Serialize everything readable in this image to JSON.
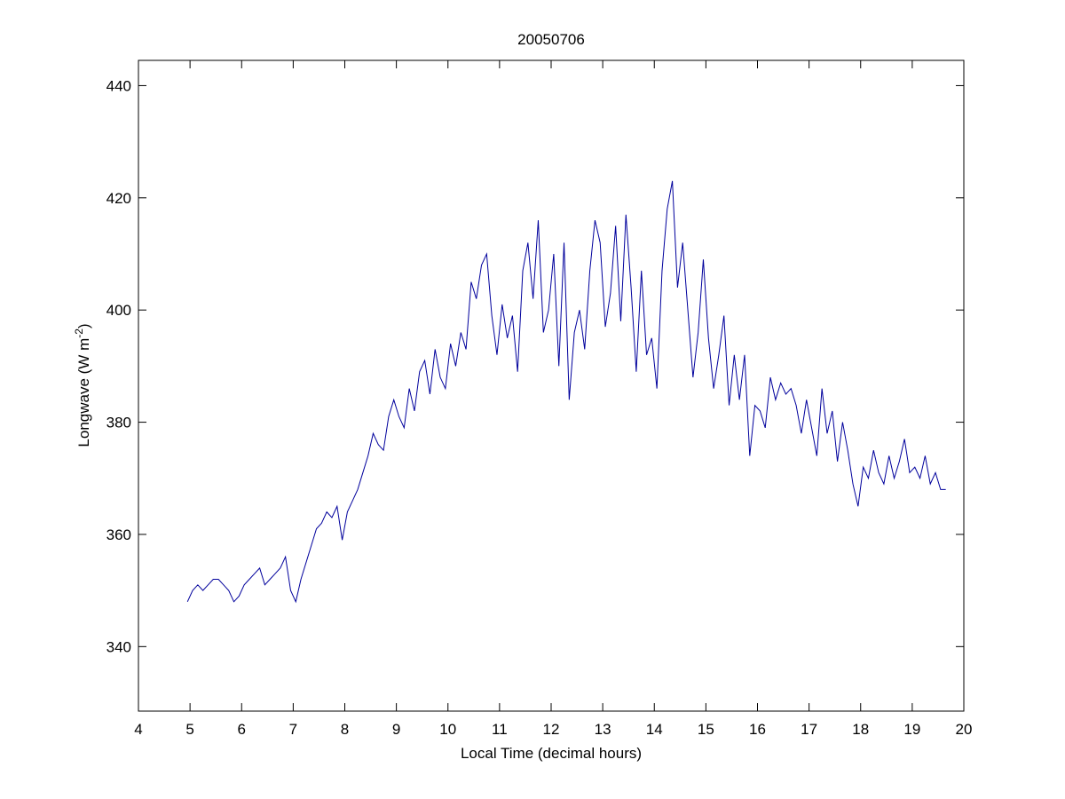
{
  "chart_data": {
    "type": "line",
    "title": "20050706",
    "x_label": "Local Time (decimal hours)",
    "y_label": [
      "Longwave (W m",
      "-2",
      ")"
    ],
    "xlim": [
      4,
      20
    ],
    "xticks": [
      4,
      5,
      6,
      7,
      8,
      9,
      10,
      11,
      12,
      13,
      14,
      15,
      16,
      17,
      18,
      19,
      20
    ],
    "ylim": [
      328.5,
      444.5
    ],
    "yticks": [
      340,
      360,
      380,
      400,
      420,
      440
    ],
    "grid": false,
    "series": [
      {
        "color": "#00009c",
        "x": [
          4.95,
          5.05,
          5.15,
          5.25,
          5.35,
          5.45,
          5.55,
          5.65,
          5.75,
          5.85,
          5.95,
          6.05,
          6.15,
          6.25,
          6.35,
          6.45,
          6.55,
          6.65,
          6.75,
          6.85,
          6.95,
          7.05,
          7.15,
          7.25,
          7.35,
          7.45,
          7.55,
          7.65,
          7.75,
          7.85,
          7.95,
          8.05,
          8.15,
          8.25,
          8.35,
          8.45,
          8.55,
          8.65,
          8.75,
          8.85,
          8.95,
          9.05,
          9.15,
          9.25,
          9.35,
          9.45,
          9.55,
          9.65,
          9.75,
          9.85,
          9.95,
          10.05,
          10.15,
          10.25,
          10.35,
          10.45,
          10.55,
          10.65,
          10.75,
          10.85,
          10.95,
          11.05,
          11.15,
          11.25,
          11.35,
          11.45,
          11.55,
          11.65,
          11.75,
          11.85,
          11.95,
          12.05,
          12.15,
          12.25,
          12.35,
          12.45,
          12.55,
          12.65,
          12.75,
          12.85,
          12.95,
          13.05,
          13.15,
          13.25,
          13.35,
          13.45,
          13.55,
          13.65,
          13.75,
          13.85,
          13.95,
          14.05,
          14.15,
          14.25,
          14.35,
          14.45,
          14.55,
          14.65,
          14.75,
          14.85,
          14.95,
          15.05,
          15.15,
          15.25,
          15.35,
          15.45,
          15.55,
          15.65,
          15.75,
          15.85,
          15.95,
          16.05,
          16.15,
          16.25,
          16.35,
          16.45,
          16.55,
          16.65,
          16.75,
          16.85,
          16.95,
          17.05,
          17.15,
          17.25,
          17.35,
          17.45,
          17.55,
          17.65,
          17.75,
          17.85,
          17.95,
          18.05,
          18.15,
          18.25,
          18.35,
          18.45,
          18.55,
          18.65,
          18.75,
          18.85,
          18.95,
          19.05,
          19.15,
          19.25,
          19.35,
          19.45,
          19.55,
          19.65
        ],
        "values": [
          348,
          350,
          351,
          350,
          351,
          352,
          352,
          351,
          350,
          348,
          349,
          351,
          352,
          353,
          354,
          351,
          352,
          353,
          354,
          356,
          350,
          348,
          352,
          355,
          358,
          361,
          362,
          364,
          363,
          365,
          359,
          364,
          366,
          368,
          371,
          374,
          378,
          376,
          375,
          381,
          384,
          381,
          379,
          386,
          382,
          389,
          391,
          385,
          393,
          388,
          386,
          394,
          390,
          396,
          393,
          405,
          402,
          408,
          410,
          399,
          392,
          401,
          395,
          399,
          389,
          407,
          412,
          402,
          416,
          396,
          400,
          410,
          390,
          412,
          384,
          396,
          400,
          393,
          407,
          416,
          412,
          397,
          403,
          415,
          398,
          417,
          404,
          389,
          407,
          392,
          395,
          386,
          407,
          418,
          423,
          404,
          412,
          400,
          388,
          396,
          409,
          395,
          386,
          392,
          399,
          383,
          392,
          384,
          392,
          374,
          383,
          382,
          379,
          388,
          384,
          387,
          385,
          386,
          383,
          378,
          384,
          379,
          374,
          386,
          378,
          382,
          373,
          380,
          375,
          369,
          365,
          372,
          370,
          375,
          371,
          369,
          374,
          370,
          373,
          377,
          371,
          372,
          370,
          374,
          369,
          371,
          368,
          368
        ]
      }
    ]
  }
}
